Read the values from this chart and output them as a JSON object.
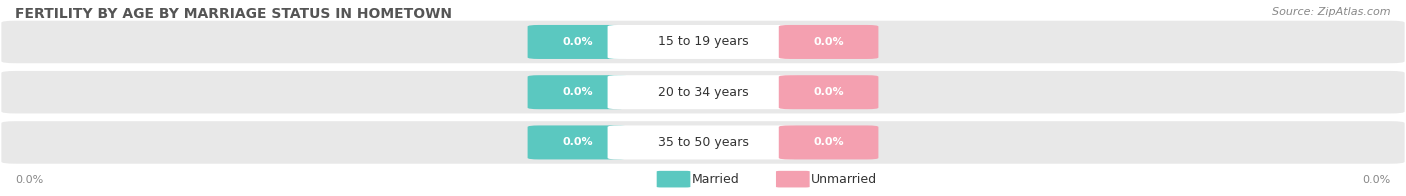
{
  "title": "FERTILITY BY AGE BY MARRIAGE STATUS IN HOMETOWN",
  "source": "Source: ZipAtlas.com",
  "categories": [
    "15 to 19 years",
    "20 to 34 years",
    "35 to 50 years"
  ],
  "married_values": [
    0.0,
    0.0,
    0.0
  ],
  "unmarried_values": [
    0.0,
    0.0,
    0.0
  ],
  "married_color": "#5bc8c0",
  "unmarried_color": "#f4a0b0",
  "bar_bg_color": "#e8e8e8",
  "row_bg_color": "#f2f2f2",
  "title_color": "#555555",
  "label_color": "#555555",
  "source_color": "#888888",
  "axis_label_color": "#888888",
  "title_fontsize": 10,
  "source_fontsize": 8,
  "legend_fontsize": 9,
  "value_fontsize": 8,
  "category_fontsize": 9,
  "axis_value_left": "0.0%",
  "axis_value_right": "0.0%"
}
